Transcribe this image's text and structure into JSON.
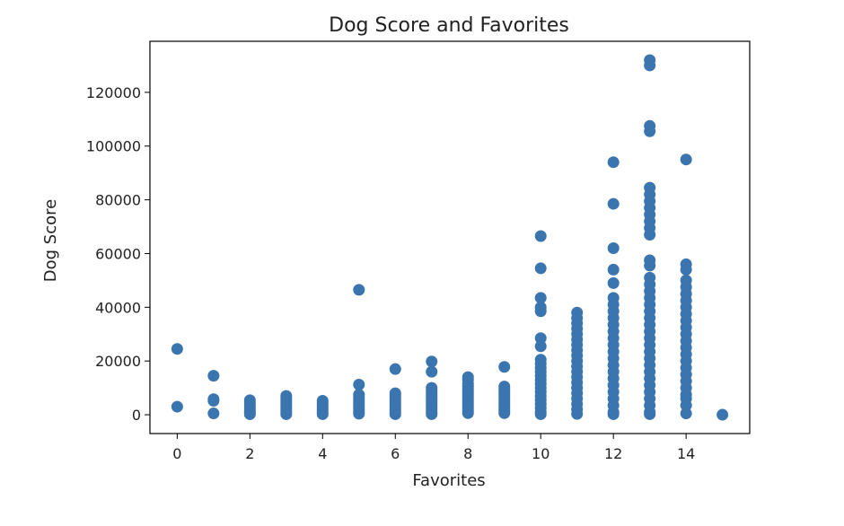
{
  "chart_data": {
    "type": "scatter",
    "title": "Dog Score and Favorites",
    "xlabel": "Favorites",
    "ylabel": "Dog Score",
    "xlim": [
      -0.75,
      15.75
    ],
    "ylim": [
      -7000,
      139000
    ],
    "xticks": [
      0,
      2,
      4,
      6,
      8,
      10,
      12,
      14
    ],
    "yticks": [
      0,
      20000,
      40000,
      60000,
      80000,
      100000,
      120000
    ],
    "grid": false,
    "marker_color": "#3b75af",
    "points": [
      [
        0,
        24500
      ],
      [
        0,
        3000
      ],
      [
        1,
        14500
      ],
      [
        1,
        5800
      ],
      [
        1,
        5200
      ],
      [
        1,
        500
      ],
      [
        2,
        5400
      ],
      [
        2,
        4500
      ],
      [
        2,
        3500
      ],
      [
        2,
        2500
      ],
      [
        2,
        1500
      ],
      [
        2,
        800
      ],
      [
        2,
        200
      ],
      [
        3,
        7000
      ],
      [
        3,
        6200
      ],
      [
        3,
        5300
      ],
      [
        3,
        4400
      ],
      [
        3,
        3500
      ],
      [
        3,
        2600
      ],
      [
        3,
        1700
      ],
      [
        3,
        900
      ],
      [
        3,
        200
      ],
      [
        4,
        5200
      ],
      [
        4,
        4300
      ],
      [
        4,
        3400
      ],
      [
        4,
        2500
      ],
      [
        4,
        1600
      ],
      [
        4,
        800
      ],
      [
        4,
        200
      ],
      [
        5,
        46500
      ],
      [
        5,
        11200
      ],
      [
        5,
        7500
      ],
      [
        5,
        6600
      ],
      [
        5,
        5700
      ],
      [
        5,
        4800
      ],
      [
        5,
        3900
      ],
      [
        5,
        3000
      ],
      [
        5,
        2100
      ],
      [
        5,
        1200
      ],
      [
        5,
        400
      ],
      [
        6,
        17000
      ],
      [
        6,
        8000
      ],
      [
        6,
        7100
      ],
      [
        6,
        6200
      ],
      [
        6,
        5300
      ],
      [
        6,
        4400
      ],
      [
        6,
        3500
      ],
      [
        6,
        2600
      ],
      [
        6,
        1700
      ],
      [
        6,
        900
      ],
      [
        6,
        200
      ],
      [
        7,
        19800
      ],
      [
        7,
        16000
      ],
      [
        7,
        10000
      ],
      [
        7,
        9000
      ],
      [
        7,
        8000
      ],
      [
        7,
        7000
      ],
      [
        7,
        6000
      ],
      [
        7,
        5000
      ],
      [
        7,
        4000
      ],
      [
        7,
        3000
      ],
      [
        7,
        2000
      ],
      [
        7,
        1000
      ],
      [
        7,
        200
      ],
      [
        8,
        14000
      ],
      [
        8,
        13000
      ],
      [
        8,
        11500
      ],
      [
        8,
        10500
      ],
      [
        8,
        9500
      ],
      [
        8,
        8500
      ],
      [
        8,
        7500
      ],
      [
        8,
        6500
      ],
      [
        8,
        5500
      ],
      [
        8,
        4500
      ],
      [
        8,
        3500
      ],
      [
        8,
        2500
      ],
      [
        8,
        1500
      ],
      [
        8,
        600
      ],
      [
        9,
        17800
      ],
      [
        9,
        10500
      ],
      [
        9,
        9500
      ],
      [
        9,
        8500
      ],
      [
        9,
        7500
      ],
      [
        9,
        6500
      ],
      [
        9,
        5500
      ],
      [
        9,
        4500
      ],
      [
        9,
        3500
      ],
      [
        9,
        2500
      ],
      [
        9,
        1500
      ],
      [
        9,
        600
      ],
      [
        10,
        66500
      ],
      [
        10,
        54500
      ],
      [
        10,
        43500
      ],
      [
        10,
        40000
      ],
      [
        10,
        38500
      ],
      [
        10,
        28500
      ],
      [
        10,
        25500
      ],
      [
        10,
        20500
      ],
      [
        10,
        19000
      ],
      [
        10,
        17500
      ],
      [
        10,
        16000
      ],
      [
        10,
        14500
      ],
      [
        10,
        13000
      ],
      [
        10,
        11500
      ],
      [
        10,
        10000
      ],
      [
        10,
        8500
      ],
      [
        10,
        7000
      ],
      [
        10,
        5500
      ],
      [
        10,
        4000
      ],
      [
        10,
        2500
      ],
      [
        10,
        1000
      ],
      [
        10,
        200
      ],
      [
        11,
        38000
      ],
      [
        11,
        36000
      ],
      [
        11,
        34000
      ],
      [
        11,
        32000
      ],
      [
        11,
        30000
      ],
      [
        11,
        28000
      ],
      [
        11,
        26000
      ],
      [
        11,
        24000
      ],
      [
        11,
        22000
      ],
      [
        11,
        20000
      ],
      [
        11,
        18000
      ],
      [
        11,
        16000
      ],
      [
        11,
        14000
      ],
      [
        11,
        12000
      ],
      [
        11,
        10000
      ],
      [
        11,
        8000
      ],
      [
        11,
        6000
      ],
      [
        11,
        4000
      ],
      [
        11,
        2000
      ],
      [
        11,
        300
      ],
      [
        12,
        94000
      ],
      [
        12,
        78500
      ],
      [
        12,
        62000
      ],
      [
        12,
        54000
      ],
      [
        12,
        49000
      ],
      [
        12,
        43500
      ],
      [
        12,
        41000
      ],
      [
        12,
        38500
      ],
      [
        12,
        36000
      ],
      [
        12,
        33500
      ],
      [
        12,
        31000
      ],
      [
        12,
        28500
      ],
      [
        12,
        26000
      ],
      [
        12,
        23500
      ],
      [
        12,
        21000
      ],
      [
        12,
        18500
      ],
      [
        12,
        16000
      ],
      [
        12,
        13500
      ],
      [
        12,
        11000
      ],
      [
        12,
        8500
      ],
      [
        12,
        6000
      ],
      [
        12,
        3500
      ],
      [
        12,
        1000
      ],
      [
        12,
        200
      ],
      [
        13,
        132000
      ],
      [
        13,
        130000
      ],
      [
        13,
        107500
      ],
      [
        13,
        105500
      ],
      [
        13,
        84500
      ],
      [
        13,
        82000
      ],
      [
        13,
        79500
      ],
      [
        13,
        77000
      ],
      [
        13,
        74500
      ],
      [
        13,
        72000
      ],
      [
        13,
        69500
      ],
      [
        13,
        67000
      ],
      [
        13,
        57500
      ],
      [
        13,
        55500
      ],
      [
        13,
        51000
      ],
      [
        13,
        48500
      ],
      [
        13,
        46000
      ],
      [
        13,
        43500
      ],
      [
        13,
        41000
      ],
      [
        13,
        38500
      ],
      [
        13,
        36000
      ],
      [
        13,
        33500
      ],
      [
        13,
        31000
      ],
      [
        13,
        28500
      ],
      [
        13,
        26000
      ],
      [
        13,
        23500
      ],
      [
        13,
        21000
      ],
      [
        13,
        18500
      ],
      [
        13,
        16000
      ],
      [
        13,
        13500
      ],
      [
        13,
        11000
      ],
      [
        13,
        8500
      ],
      [
        13,
        6000
      ],
      [
        13,
        3500
      ],
      [
        13,
        1000
      ],
      [
        13,
        200
      ],
      [
        14,
        95000
      ],
      [
        14,
        56000
      ],
      [
        14,
        54000
      ],
      [
        14,
        50000
      ],
      [
        14,
        47500
      ],
      [
        14,
        45000
      ],
      [
        14,
        42500
      ],
      [
        14,
        40000
      ],
      [
        14,
        37500
      ],
      [
        14,
        35000
      ],
      [
        14,
        32500
      ],
      [
        14,
        30000
      ],
      [
        14,
        27500
      ],
      [
        14,
        25000
      ],
      [
        14,
        22500
      ],
      [
        14,
        20000
      ],
      [
        14,
        17500
      ],
      [
        14,
        15000
      ],
      [
        14,
        12500
      ],
      [
        14,
        10000
      ],
      [
        14,
        7500
      ],
      [
        14,
        6000
      ],
      [
        14,
        3500
      ],
      [
        14,
        500
      ],
      [
        15,
        0
      ]
    ]
  }
}
